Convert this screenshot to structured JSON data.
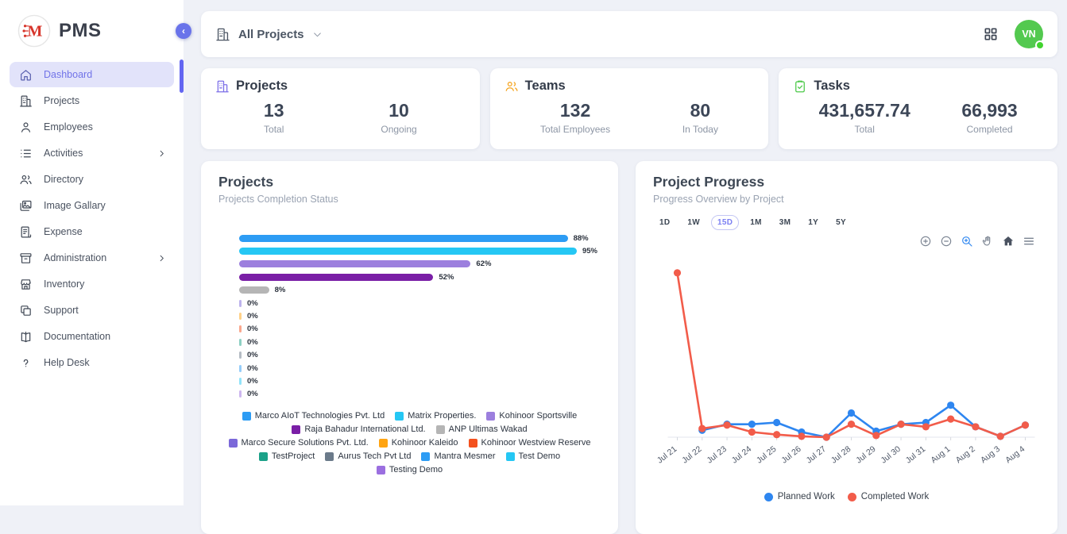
{
  "app": {
    "name": "PMS"
  },
  "sidebar": {
    "items": [
      {
        "label": "Dashboard",
        "icon": "home",
        "active": true,
        "chevron": false
      },
      {
        "label": "Projects",
        "icon": "building",
        "active": false,
        "chevron": false
      },
      {
        "label": "Employees",
        "icon": "person",
        "active": false,
        "chevron": false
      },
      {
        "label": "Activities",
        "icon": "list",
        "active": false,
        "chevron": true
      },
      {
        "label": "Directory",
        "icon": "people",
        "active": false,
        "chevron": false
      },
      {
        "label": "Image Gallary",
        "icon": "image",
        "active": false,
        "chevron": false
      },
      {
        "label": "Expense",
        "icon": "receipt",
        "active": false,
        "chevron": false
      },
      {
        "label": "Administration",
        "icon": "archive",
        "active": false,
        "chevron": true
      },
      {
        "label": "Inventory",
        "icon": "store",
        "active": false,
        "chevron": false
      },
      {
        "label": "Support",
        "icon": "copy",
        "active": false,
        "chevron": false
      },
      {
        "label": "Documentation",
        "icon": "book",
        "active": false,
        "chevron": false
      },
      {
        "label": "Help Desk",
        "icon": "help",
        "active": false,
        "chevron": false
      }
    ]
  },
  "topbar": {
    "scope_label": "All Projects",
    "avatar_initials": "VN",
    "avatar_color": "#53c94f"
  },
  "stats": [
    {
      "title": "Projects",
      "icon": "building",
      "icon_color": "#7c6fe8",
      "metrics": [
        {
          "value": "13",
          "label": "Total"
        },
        {
          "value": "10",
          "label": "Ongoing"
        }
      ]
    },
    {
      "title": "Teams",
      "icon": "people",
      "icon_color": "#f5a623",
      "metrics": [
        {
          "value": "132",
          "label": "Total Employees"
        },
        {
          "value": "80",
          "label": "In Today"
        }
      ]
    },
    {
      "title": "Tasks",
      "icon": "task",
      "icon_color": "#4cc949",
      "metrics": [
        {
          "value": "431,657.74",
          "label": "Total"
        },
        {
          "value": "66,993",
          "label": "Completed"
        }
      ]
    }
  ],
  "projects_card": {
    "title": "Projects",
    "subtitle": "Projects Completion Status",
    "chart_data": {
      "type": "bar",
      "orientation": "horizontal",
      "unit": "%",
      "xlim": [
        0,
        100
      ],
      "bars": [
        {
          "name": "Marco AIoT Technologies Pvt. Ltd",
          "value": 88,
          "color": "#2d9cf4"
        },
        {
          "name": "Matrix Properties.",
          "value": 95,
          "color": "#25c7f4"
        },
        {
          "name": "Kohinoor Sportsville",
          "value": 62,
          "color": "#9c7fde"
        },
        {
          "name": "Raja Bahadur International Ltd.",
          "value": 52,
          "color": "#7a1fa6"
        },
        {
          "name": "ANP Ultimas Wakad",
          "value": 8,
          "color": "#b5b5b5"
        },
        {
          "name": "Marco Secure Solutions Pvt. Ltd.",
          "value": 0,
          "color": "#7b68d9"
        },
        {
          "name": "Kohinoor Kaleido",
          "value": 0,
          "color": "#ffa412"
        },
        {
          "name": "Kohinoor Westview Reserve",
          "value": 0,
          "color": "#f4511e"
        },
        {
          "name": "TestProject",
          "value": 0,
          "color": "#1ba188"
        },
        {
          "name": "Aurus Tech Pvt Ltd",
          "value": 0,
          "color": "#6b7a8a"
        },
        {
          "name": "Mantra Mesmer",
          "value": 0,
          "color": "#2d9cf4"
        },
        {
          "name": "Test Demo",
          "value": 0,
          "color": "#25c7f4"
        },
        {
          "name": "Testing Demo",
          "value": 0,
          "color": "#9b6fe0"
        }
      ]
    }
  },
  "progress_card": {
    "title": "Project Progress",
    "subtitle": "Progress Overview by Project",
    "ranges": [
      "1D",
      "1W",
      "15D",
      "1M",
      "3M",
      "1Y",
      "5Y"
    ],
    "active_range": "15D",
    "toolbar": [
      "zoom-in",
      "zoom-out",
      "selection-zoom",
      "pan",
      "reset-home",
      "menu"
    ],
    "chart_data": {
      "type": "line",
      "x": [
        "Jul 21",
        "Jul 22",
        "Jul 23",
        "Jul 24",
        "Jul 25",
        "Jul 26",
        "Jul 27",
        "Jul 28",
        "Jul 29",
        "Jul 30",
        "Jul 31",
        "Aug 1",
        "Aug 2",
        "Aug 3",
        "Aug 4"
      ],
      "ylim": [
        0,
        200
      ],
      "grid": false,
      "legend_position": "bottom",
      "series": [
        {
          "name": "Planned Work",
          "color": "#2e86f0",
          "values": [
            null,
            8,
            15,
            15,
            17,
            6,
            0,
            28,
            7,
            15,
            17,
            37,
            12,
            1,
            14
          ]
        },
        {
          "name": "Completed Work",
          "color": "#f25c4a",
          "values": [
            190,
            10,
            14,
            6,
            3,
            1,
            0,
            15,
            2,
            15,
            12,
            21,
            12,
            1,
            14
          ]
        }
      ]
    }
  }
}
